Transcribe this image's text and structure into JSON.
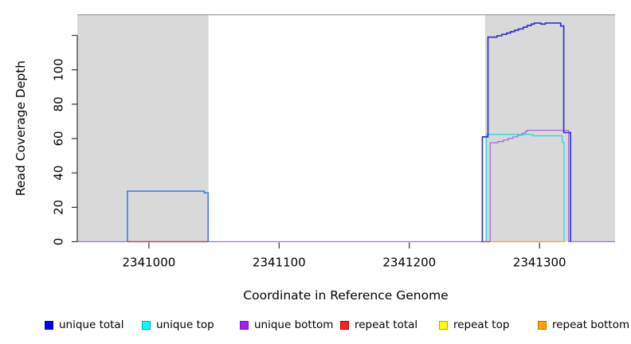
{
  "chart_data": {
    "type": "line",
    "step": true,
    "title": "",
    "xlabel": "Coordinate in Reference Genome",
    "ylabel": "Read Coverage Depth",
    "xlim": [
      2340945,
      2341358
    ],
    "ylim": [
      0,
      132
    ],
    "grid": false,
    "x_ticks": [
      {
        "v": 2341000,
        "label": "2341000"
      },
      {
        "v": 2341100,
        "label": "2341100"
      },
      {
        "v": 2341200,
        "label": "2341200"
      },
      {
        "v": 2341300,
        "label": "2341300"
      }
    ],
    "y_ticks": [
      {
        "v": 0,
        "label": "0"
      },
      {
        "v": 20,
        "label": "20"
      },
      {
        "v": 40,
        "label": "40"
      },
      {
        "v": 60,
        "label": "60"
      },
      {
        "v": 80,
        "label": "80"
      },
      {
        "v": 100,
        "label": "100"
      },
      {
        "v": 120,
        "label": ""
      }
    ],
    "shaded_regions": [
      {
        "x1": 2340945,
        "x2": 2341045.8,
        "color": "#D9D9D9"
      },
      {
        "x1": 2341258.2,
        "x2": 2341358,
        "color": "#D9D9D9"
      }
    ],
    "series": [
      {
        "name": "unique total",
        "color": "#3232CC",
        "lines": [
          {
            "color": "#4080E8",
            "pts": [
              [
                2340983.5,
                0
              ],
              [
                2340983.5,
                29.4
              ],
              [
                2341042.5,
                29.4
              ],
              [
                2341042.5,
                28.4
              ],
              [
                2341045.5,
                28.4
              ],
              [
                2341045.5,
                0
              ]
            ]
          },
          {
            "pts": [
              [
                2341256.1,
                0
              ],
              [
                2341256.1,
                61
              ],
              [
                2341260.4,
                61
              ],
              [
                2341260.4,
                119
              ],
              [
                2341267.4,
                119
              ],
              [
                2341267.4,
                119.8
              ],
              [
                2341271,
                119.8
              ],
              [
                2341271,
                120.6
              ],
              [
                2341274.7,
                120.6
              ],
              [
                2341274.7,
                121.4
              ],
              [
                2341277.7,
                121.4
              ],
              [
                2341277.7,
                122.2
              ],
              [
                2341280.8,
                122.2
              ],
              [
                2341280.8,
                123
              ],
              [
                2341283.8,
                123
              ],
              [
                2341283.8,
                123.8
              ],
              [
                2341287.5,
                123.8
              ],
              [
                2341287.5,
                124.8
              ],
              [
                2341290.5,
                124.8
              ],
              [
                2341290.5,
                125.8
              ],
              [
                2341293.6,
                125.8
              ],
              [
                2341293.6,
                126.6
              ],
              [
                2341296,
                126.6
              ],
              [
                2341296,
                127.2
              ],
              [
                2341301,
                127.2
              ],
              [
                2341301,
                126.6
              ],
              [
                2341304.5,
                126.6
              ],
              [
                2341304.5,
                127.2
              ],
              [
                2341316.2,
                127.2
              ],
              [
                2341316.2,
                125.5
              ],
              [
                2341318.6,
                125.5
              ],
              [
                2341318.6,
                63.5
              ],
              [
                2341323.8,
                63.5
              ],
              [
                2341323.8,
                0
              ]
            ]
          }
        ]
      },
      {
        "name": "unique top",
        "color": "#2BD9DE",
        "lines": [
          {
            "pts": [
              [
                2341259.2,
                0
              ],
              [
                2341259.2,
                62.4
              ],
              [
                2341294.8,
                62.4
              ],
              [
                2341294.8,
                61.6
              ],
              [
                2341317.4,
                61.6
              ],
              [
                2341317.4,
                57.8
              ],
              [
                2341318.8,
                57.8
              ],
              [
                2341318.8,
                0
              ]
            ]
          }
        ]
      },
      {
        "name": "unique bottom",
        "color": "#A46BE0",
        "lines": [
          {
            "pts": [
              [
                2340945,
                0
              ],
              [
                2341262.1,
                0
              ],
              [
                2341262.1,
                57.5
              ],
              [
                2341268,
                57.5
              ],
              [
                2341268,
                58.3
              ],
              [
                2341272.3,
                58.3
              ],
              [
                2341272.3,
                59.2
              ],
              [
                2341275.9,
                59.2
              ],
              [
                2341275.9,
                60.1
              ],
              [
                2341279.6,
                60.1
              ],
              [
                2341279.6,
                61
              ],
              [
                2341283.2,
                61
              ],
              [
                2341283.2,
                62
              ],
              [
                2341286.9,
                62
              ],
              [
                2341286.9,
                63.2
              ],
              [
                2341289.3,
                63.2
              ],
              [
                2341289.3,
                64.2
              ],
              [
                2341290.5,
                64.2
              ],
              [
                2341290.5,
                64.8
              ],
              [
                2341322.3,
                64.8
              ],
              [
                2341322.3,
                0
              ],
              [
                2341358,
                0
              ]
            ]
          }
        ]
      },
      {
        "name": "repeat total",
        "color": "#E03434",
        "lines": [
          {
            "pts": [
              [
                2340983.5,
                0
              ],
              [
                2341045.5,
                0
              ]
            ]
          },
          {
            "pts": [
              [
                2341255,
                0
              ],
              [
                2341262,
                0
              ]
            ]
          }
        ]
      },
      {
        "name": "repeat top",
        "color": "#E8E800",
        "lines": [
          {
            "pts": [
              [
                2341317.4,
                0
              ],
              [
                2341320,
                0
              ]
            ]
          }
        ]
      },
      {
        "name": "repeat bottom",
        "color": "#FF9E2C",
        "lines": [
          {
            "pts": [
              [
                2341262,
                0
              ],
              [
                2341317.4,
                0
              ]
            ]
          }
        ]
      }
    ],
    "legend": {
      "position": "bottom",
      "items": [
        {
          "label": "unique total",
          "fill": "#0000EE",
          "border": "#0000B8"
        },
        {
          "label": "unique top",
          "fill": "#00FFFF",
          "border": "#00A8A8"
        },
        {
          "label": "unique bottom",
          "fill": "#A020F0",
          "border": "#7714B8"
        },
        {
          "label": "repeat total",
          "fill": "#FF2020",
          "border": "#B00000"
        },
        {
          "label": "repeat top",
          "fill": "#FFFF00",
          "border": "#B8A800"
        },
        {
          "label": "repeat bottom",
          "fill": "#FFA500",
          "border": "#B87400"
        }
      ]
    }
  }
}
